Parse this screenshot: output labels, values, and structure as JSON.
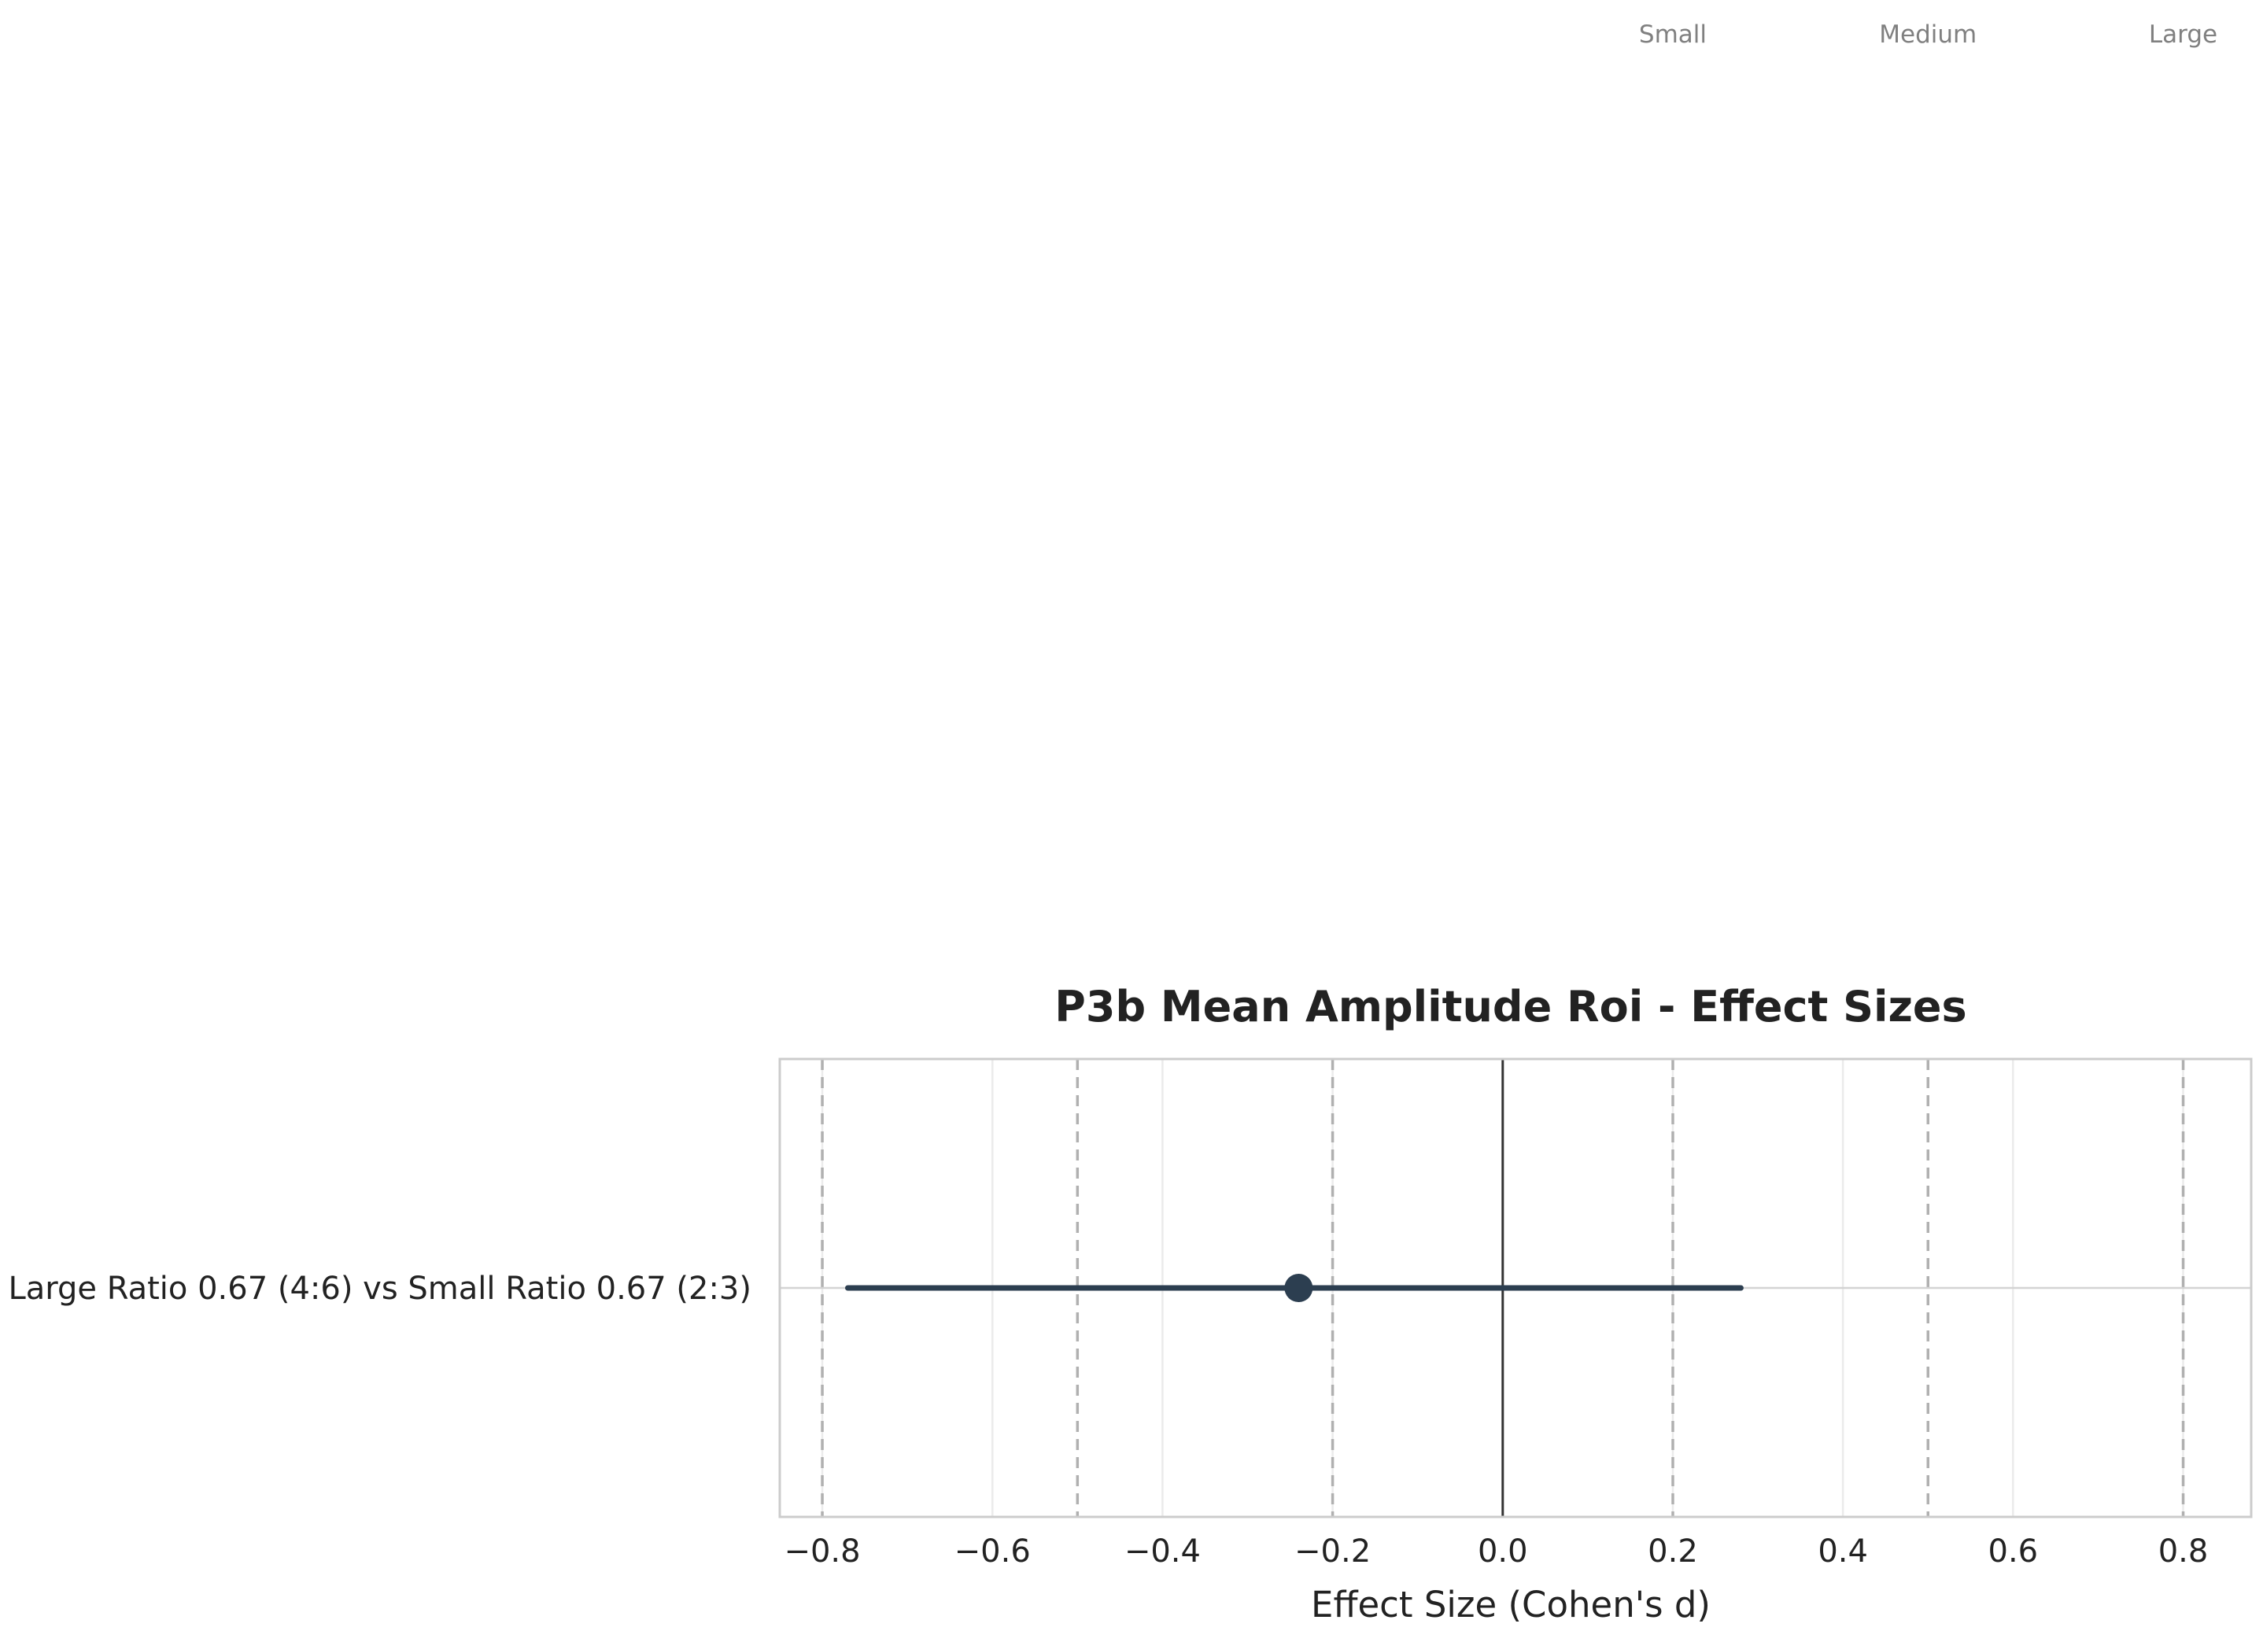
{
  "chart_data": {
    "type": "forest",
    "title": "P3b Mean Amplitude Roi - Effect Sizes",
    "xlabel": "Effect Size (Cohen's d)",
    "ylabel": "",
    "xlim": [
      -0.85,
      0.88
    ],
    "xticks": [
      -0.8,
      -0.6,
      -0.4,
      -0.2,
      0.0,
      0.2,
      0.4,
      0.6,
      0.8
    ],
    "xtick_labels": [
      "−0.8",
      "−0.6",
      "−0.4",
      "−0.2",
      "0.0",
      "0.2",
      "0.4",
      "0.6",
      "0.8"
    ],
    "grid": true,
    "comparisons": [
      {
        "label": "Large Ratio 0.67 (4:6) vs Small Ratio 0.67 (2:3)",
        "d": -0.24,
        "ci_low": -0.77,
        "ci_high": 0.28
      }
    ],
    "reference_lines": {
      "zero": 0.0,
      "thresholds": [
        -0.8,
        -0.5,
        -0.2,
        0.2,
        0.5,
        0.8
      ]
    },
    "threshold_labels": [
      {
        "value": 0.2,
        "label": "Small"
      },
      {
        "value": 0.5,
        "label": "Medium"
      },
      {
        "value": 0.8,
        "label": "Large"
      }
    ],
    "colors": {
      "point": "#2c3e50",
      "ci_line": "#2c3e50",
      "zero_line": "#333333",
      "threshold_line": "#b0b0b0",
      "grid": "#ebebeb",
      "frame": "#cccccc",
      "threshold_text": "#808080",
      "text": "#222222"
    }
  }
}
